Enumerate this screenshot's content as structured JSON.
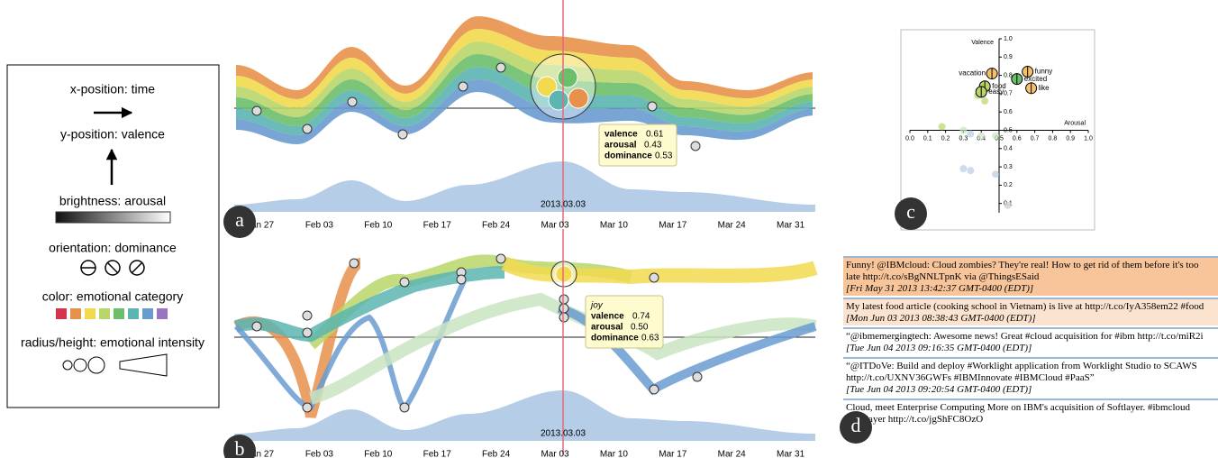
{
  "legend": {
    "items": [
      "x-position: time",
      "y-position: valence",
      "brightness: arousal",
      "orientation: dominance",
      "color: emotional category",
      "radius/height: emotional intensity"
    ]
  },
  "panel_a": {
    "label": "a",
    "xticks": [
      "Jan 27",
      "Feb 03",
      "Feb 10",
      "Feb 17",
      "Feb 24",
      "Mar 03",
      "Mar 10",
      "Mar 17",
      "Mar 24",
      "Mar 31"
    ],
    "date": "2013.03.03",
    "tooltip": {
      "rows": [
        {
          "name": "valence",
          "value": "0.61"
        },
        {
          "name": "arousal",
          "value": "0.43"
        },
        {
          "name": "dominance",
          "value": "0.53"
        }
      ]
    }
  },
  "panel_b": {
    "label": "b",
    "xticks": [
      "Jan 27",
      "Feb 03",
      "Feb 10",
      "Feb 17",
      "Feb 24",
      "Mar 03",
      "Mar 10",
      "Mar 17",
      "Mar 24",
      "Mar 31"
    ],
    "date": "2013.03.03",
    "tooltip": {
      "emotion": "joy",
      "rows": [
        {
          "name": "valence",
          "value": "0.74"
        },
        {
          "name": "arousal",
          "value": "0.50"
        },
        {
          "name": "dominance",
          "value": "0.63"
        }
      ]
    }
  },
  "panel_c": {
    "label": "c",
    "xlabel": "Arousal",
    "ylabel": "Valence",
    "xlim": [
      0,
      1
    ],
    "ylim": [
      0,
      1
    ],
    "xticks": [
      {
        "value": 0,
        "label": "0.0"
      },
      0.1,
      0.2,
      0.3,
      0.4,
      0.5,
      0.6,
      0.7,
      0.8,
      0.9,
      {
        "value": 1,
        "label": "1.0"
      }
    ],
    "yticks": [
      0.1,
      0.2,
      0.3,
      0.4,
      0.5,
      0.6,
      0.7,
      0.8,
      0.9,
      {
        "value": 1,
        "label": "1.0"
      }
    ],
    "points": {
      "names": [
        "vacation",
        "funny",
        "excited",
        "like",
        "food",
        "easy"
      ],
      "x": [
        0.46,
        0.66,
        0.6,
        0.68,
        0.42,
        0.4
      ],
      "y": [
        0.81,
        0.82,
        0.78,
        0.73,
        0.74,
        0.71
      ]
    },
    "faint": {
      "x": [
        0.38,
        0.42,
        0.18,
        0.3,
        0.34,
        0.4,
        0.3,
        0.34,
        0.48,
        0.48,
        0.55
      ],
      "y": [
        0.69,
        0.66,
        0.52,
        0.5,
        0.48,
        0.47,
        0.29,
        0.28,
        0.47,
        0.26,
        0.09
      ]
    }
  },
  "panel_d": {
    "label": "d",
    "tweets": [
      {
        "text": "Funny! @IBMcloud: Cloud zombies? They're real! How to get rid of them before it's too late http://t.co/sBgNNLTpnK via @ThingsESaid",
        "date": "[Fri May 31 2013 13:42:37 GMT-0400 (EDT)]"
      },
      {
        "text": "My latest food article (cooking school in Vietnam) is live at http://t.co/IyA358em22 #food",
        "date": "[Mon Jun 03 2013 08:38:43 GMT-0400 (EDT)]"
      },
      {
        "text": "“@ibmemergingtech: Awesome news! Great #cloud acquisition for #ibm http://t.co/miR2i",
        "date": "[Tue Jun 04 2013 09:16:35 GMT-0400 (EDT)]"
      },
      {
        "text": "“@ITDoVe: Build and deploy #Worklight application from Worklight Studio to SCAWS http://t.co/UXNV36GWFs #IBMInnovate #IBMCloud #PaaS”",
        "date": "[Tue Jun 04 2013 09:20:54 GMT-0400 (EDT)]"
      },
      {
        "text": "Cloud, meet Enterprise Computing More on IBM's acquisition of Softlayer. #ibmcloud #softlayer http://t.co/jgShFC8OzO"
      }
    ]
  }
}
